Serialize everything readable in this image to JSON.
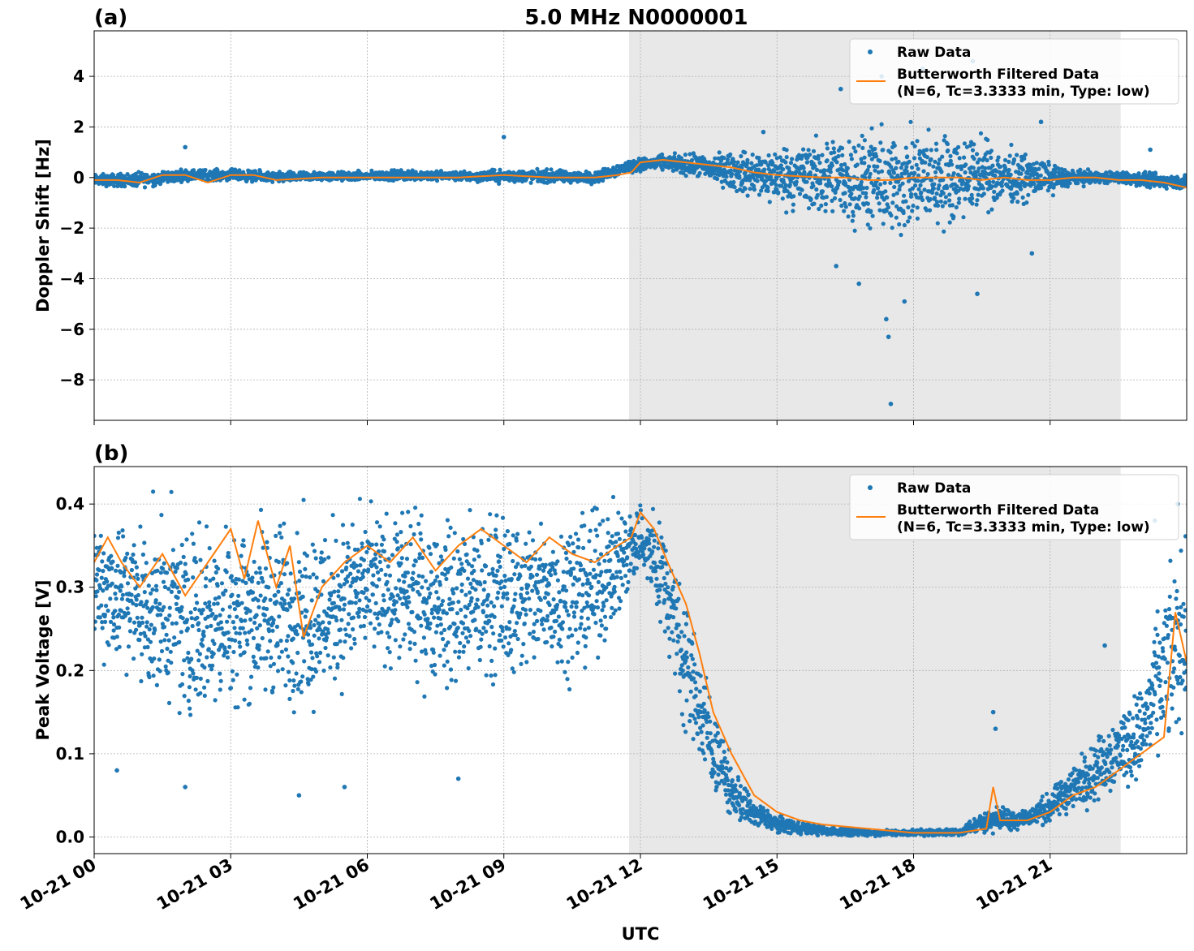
{
  "figure": {
    "title": "5.0 MHz N0000001",
    "xlabel": "UTC"
  },
  "colors": {
    "raw": "#1f77b4",
    "filtered": "#ff7f0e",
    "shade": "#e8e8e8",
    "grid": "#b0b0b0"
  },
  "chart_data": [
    {
      "type": "scatter",
      "panel_label": "(a)",
      "ylabel": "Doppler Shift [Hz]",
      "xlim": [
        0,
        24
      ],
      "ylim": [
        -9.6,
        5.8
      ],
      "y_ticks": [
        4,
        2,
        0,
        -2,
        -4,
        -6,
        -8
      ],
      "y_tick_labels": [
        "4",
        "2",
        "0",
        "−2",
        "−4",
        "−6",
        "−8"
      ],
      "x_ticks": [
        0,
        3,
        6,
        9,
        12,
        15,
        18,
        21
      ],
      "x_tick_labels": [
        "10-21 00",
        "10-21 03",
        "10-21 06",
        "10-21 09",
        "10-21 12",
        "10-21 15",
        "10-21 18",
        "10-21 21"
      ],
      "grid": true,
      "shaded_span_hours": [
        11.75,
        22.55
      ],
      "legend": {
        "placement": "upper-right",
        "entries": [
          "Raw Data",
          "Butterworth Filtered Data",
          "(N=6, Tc=3.3333 min, Type: low)"
        ]
      },
      "series": [
        {
          "name": "Raw Data",
          "style": "points",
          "envelope_hours": [
            0,
            1,
            2,
            3,
            4,
            5,
            6,
            7,
            8,
            9,
            10,
            11,
            11.75,
            12.5,
            13.5,
            14.5,
            15.5,
            16.5,
            17.5,
            18.5,
            19.5,
            20.5,
            21.5,
            22.5,
            23,
            24
          ],
          "envelope_low": [
            -0.4,
            -0.5,
            -0.2,
            -0.2,
            -0.3,
            -0.2,
            -0.2,
            -0.2,
            -0.2,
            -0.3,
            -0.3,
            -0.3,
            0.1,
            0.2,
            -0.3,
            -1.2,
            -1.8,
            -2.4,
            -3.2,
            -2.6,
            -1.8,
            -1.2,
            -0.4,
            -0.3,
            -0.5,
            -0.6
          ],
          "envelope_high": [
            0.2,
            0.3,
            0.4,
            0.4,
            0.3,
            0.3,
            0.3,
            0.4,
            0.3,
            0.4,
            0.4,
            0.3,
            0.8,
            1.0,
            1.1,
            1.4,
            1.9,
            2.3,
            2.6,
            2.5,
            2.0,
            1.2,
            0.4,
            0.3,
            0.3,
            0.2
          ],
          "outliers": [
            [
              2.0,
              1.2
            ],
            [
              9.0,
              1.6
            ],
            [
              14.7,
              1.8
            ],
            [
              16.4,
              3.5
            ],
            [
              17.3,
              4.0
            ],
            [
              18.2,
              4.3
            ],
            [
              19.3,
              4.6
            ],
            [
              20.8,
              2.2
            ],
            [
              23.2,
              1.1
            ],
            [
              16.3,
              -3.5
            ],
            [
              16.8,
              -4.2
            ],
            [
              17.4,
              -5.6
            ],
            [
              17.45,
              -6.3
            ],
            [
              17.5,
              -8.95
            ],
            [
              17.8,
              -4.9
            ],
            [
              19.4,
              -4.6
            ],
            [
              20.6,
              -3.0
            ]
          ]
        },
        {
          "name": "Butterworth Filtered Data",
          "style": "line",
          "x_hours": [
            0,
            0.5,
            1,
            1.5,
            2,
            2.5,
            3,
            3.5,
            4,
            5,
            6,
            7,
            8,
            9,
            10,
            11,
            11.5,
            11.8,
            12,
            12.5,
            13,
            13.5,
            14,
            14.5,
            15,
            16,
            16.5,
            17,
            17.5,
            18,
            18.5,
            19,
            19.5,
            20,
            20.5,
            21,
            21.5,
            22,
            22.5,
            23,
            23.5,
            24
          ],
          "y": [
            -0.1,
            -0.1,
            -0.2,
            0.1,
            0.1,
            -0.2,
            0.1,
            0.1,
            -0.1,
            0.0,
            0.0,
            0.0,
            0.0,
            0.1,
            0.0,
            0.0,
            0.1,
            0.2,
            0.6,
            0.7,
            0.6,
            0.5,
            0.4,
            0.2,
            0.1,
            0.0,
            0.0,
            -0.1,
            -0.1,
            0.0,
            0.0,
            0.0,
            -0.1,
            0.0,
            -0.1,
            -0.1,
            0.0,
            0.0,
            -0.1,
            -0.1,
            -0.2,
            -0.4
          ]
        }
      ]
    },
    {
      "type": "scatter",
      "panel_label": "(b)",
      "ylabel": "Peak Voltage [V]",
      "xlim": [
        0,
        24
      ],
      "ylim": [
        -0.02,
        0.445
      ],
      "y_ticks": [
        0.4,
        0.3,
        0.2,
        0.1,
        0.0
      ],
      "y_tick_labels": [
        "0.4",
        "0.3",
        "0.2",
        "0.1",
        "0.0"
      ],
      "x_ticks": [
        0,
        3,
        6,
        9,
        12,
        15,
        18,
        21
      ],
      "x_tick_labels": [
        "10-21 00",
        "10-21 03",
        "10-21 06",
        "10-21 09",
        "10-21 12",
        "10-21 15",
        "10-21 18",
        "10-21 21"
      ],
      "grid": true,
      "shaded_span_hours": [
        11.75,
        22.55
      ],
      "legend": {
        "placement": "upper-right",
        "entries": [
          "Raw Data",
          "Butterworth Filtered Data",
          "(N=6, Tc=3.3333 min, Type: low)"
        ]
      },
      "series": [
        {
          "name": "Raw Data",
          "style": "points",
          "envelope_hours": [
            0,
            1,
            2,
            3,
            4,
            5,
            6,
            7,
            8,
            9,
            10,
            11,
            12,
            12.5,
            13,
            13.5,
            14,
            14.5,
            15,
            16,
            17,
            18,
            19,
            19.7,
            20.5,
            21,
            21.5,
            22,
            22.5,
            23,
            23.5,
            24
          ],
          "envelope_low": [
            0.2,
            0.14,
            0.1,
            0.12,
            0.12,
            0.12,
            0.18,
            0.16,
            0.14,
            0.16,
            0.16,
            0.18,
            0.3,
            0.22,
            0.1,
            0.04,
            0.01,
            0.005,
            0.002,
            0.0,
            0.0,
            0.0,
            0.0,
            0.002,
            0.005,
            0.01,
            0.02,
            0.03,
            0.04,
            0.05,
            0.07,
            0.1
          ],
          "envelope_high": [
            0.42,
            0.42,
            0.42,
            0.42,
            0.42,
            0.42,
            0.42,
            0.42,
            0.42,
            0.42,
            0.42,
            0.42,
            0.42,
            0.41,
            0.32,
            0.2,
            0.1,
            0.05,
            0.03,
            0.015,
            0.01,
            0.01,
            0.012,
            0.04,
            0.04,
            0.06,
            0.1,
            0.13,
            0.17,
            0.2,
            0.33,
            0.4
          ],
          "outliers": [
            [
              0.5,
              0.08
            ],
            [
              2.0,
              0.06
            ],
            [
              4.5,
              0.05
            ],
            [
              5.5,
              0.06
            ],
            [
              8.0,
              0.07
            ],
            [
              19.75,
              0.15
            ],
            [
              19.8,
              0.13
            ],
            [
              22.2,
              0.23
            ],
            [
              23.3,
              0.38
            ],
            [
              23.8,
              0.4
            ]
          ]
        },
        {
          "name": "Butterworth Filtered Data",
          "style": "line",
          "x_hours": [
            0,
            0.3,
            0.6,
            1,
            1.5,
            2,
            2.5,
            3,
            3.3,
            3.6,
            4,
            4.3,
            4.6,
            5,
            5.5,
            6,
            6.5,
            7,
            7.5,
            8,
            8.5,
            9,
            9.5,
            10,
            10.5,
            11,
            11.5,
            11.8,
            12,
            12.3,
            12.6,
            13,
            13.3,
            13.6,
            14,
            14.5,
            15,
            15.5,
            16,
            17,
            18,
            19,
            19.6,
            19.75,
            19.9,
            20.5,
            21,
            21.5,
            22,
            22.5,
            23,
            23.5,
            23.75,
            24
          ],
          "y": [
            0.33,
            0.36,
            0.33,
            0.3,
            0.34,
            0.29,
            0.33,
            0.37,
            0.31,
            0.38,
            0.3,
            0.35,
            0.24,
            0.3,
            0.33,
            0.35,
            0.33,
            0.36,
            0.32,
            0.35,
            0.37,
            0.35,
            0.33,
            0.36,
            0.34,
            0.33,
            0.35,
            0.36,
            0.39,
            0.37,
            0.33,
            0.28,
            0.22,
            0.15,
            0.1,
            0.05,
            0.03,
            0.02,
            0.015,
            0.01,
            0.005,
            0.005,
            0.01,
            0.06,
            0.02,
            0.02,
            0.03,
            0.05,
            0.06,
            0.08,
            0.1,
            0.12,
            0.27,
            0.21
          ]
        }
      ]
    }
  ]
}
